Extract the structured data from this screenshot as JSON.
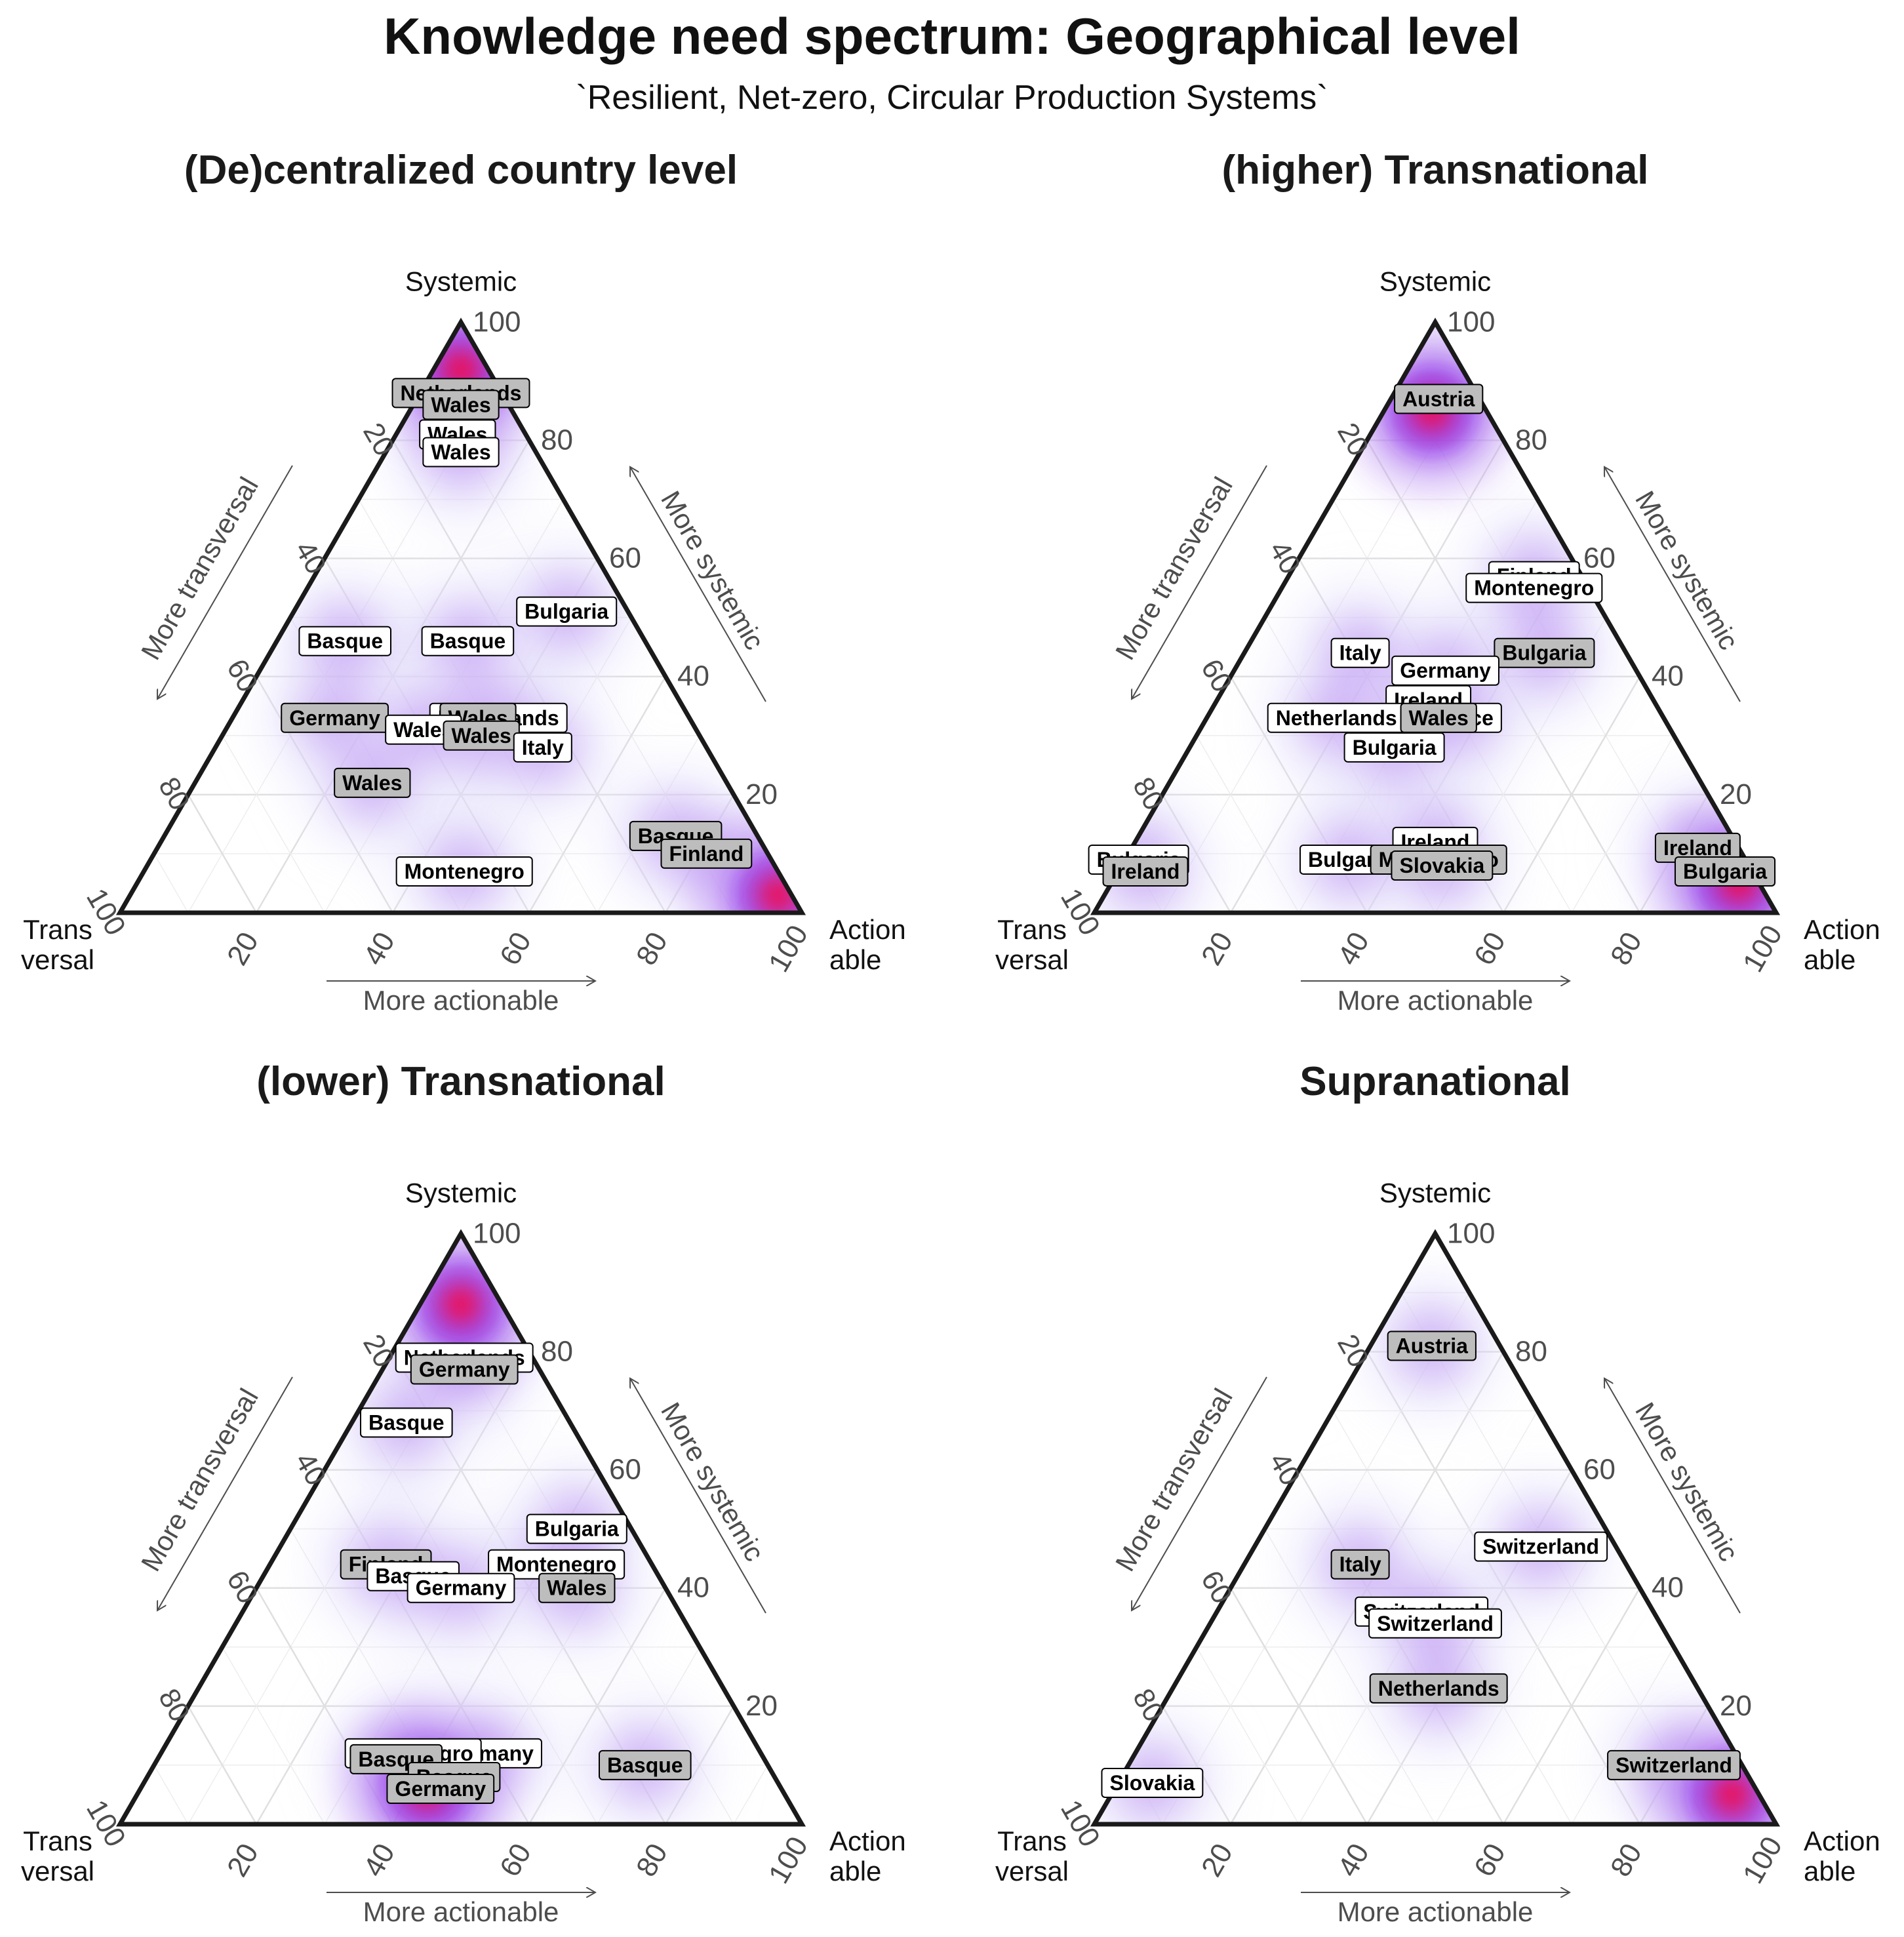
{
  "title": "Knowledge need spectrum: Geographical level",
  "subtitle": "`Resilient, Net-zero, Circular Production Systems`",
  "axes": {
    "top_vertex": "Systemic",
    "left_vertex": [
      "Trans",
      "versal"
    ],
    "right_vertex": [
      "Action",
      "able"
    ],
    "left_arrow": "More transversal",
    "right_arrow": "More systemic",
    "bottom_arrow": "More actionable",
    "ticks": [
      "20",
      "40",
      "60",
      "80",
      "100"
    ]
  },
  "colors": {
    "density_light": "#e3e0fb",
    "density_mid": "#b27cf0",
    "density_high": "#8a1fe6",
    "density_peak": "#ff0033",
    "label_white_fill": "#ffffff",
    "label_grey_fill": "#bdbdbd",
    "frame": "#1a1a1a",
    "grid": "#e6e6e6"
  },
  "chart_data": [
    {
      "type": "ternary-scatter-density",
      "title": "(De)centralized country level",
      "coordinates": [
        "Systemic",
        "Transversal",
        "Actionable"
      ],
      "points": [
        {
          "label": "Netherlands",
          "systemic": 88,
          "transversal": 6,
          "actionable": 6,
          "fill": "grey"
        },
        {
          "label": "Wales",
          "systemic": 86,
          "transversal": 7,
          "actionable": 7,
          "fill": "grey"
        },
        {
          "label": "Wales",
          "systemic": 81,
          "transversal": 10,
          "actionable": 9,
          "fill": "white"
        },
        {
          "label": "Wales",
          "systemic": 78,
          "transversal": 11,
          "actionable": 11,
          "fill": "white"
        },
        {
          "label": "Bulgaria",
          "systemic": 51,
          "transversal": 9,
          "actionable": 40,
          "fill": "white"
        },
        {
          "label": "Basque",
          "systemic": 46,
          "transversal": 44,
          "actionable": 10,
          "fill": "white"
        },
        {
          "label": "Basque",
          "systemic": 46,
          "transversal": 26,
          "actionable": 28,
          "fill": "white"
        },
        {
          "label": "Germany",
          "systemic": 33,
          "transversal": 52,
          "actionable": 15,
          "fill": "grey"
        },
        {
          "label": "Netherlands",
          "systemic": 33,
          "transversal": 28,
          "actionable": 39,
          "fill": "white"
        },
        {
          "label": "Wales",
          "systemic": 33,
          "transversal": 31,
          "actionable": 36,
          "fill": "grey"
        },
        {
          "label": "Wales",
          "systemic": 31,
          "transversal": 40,
          "actionable": 29,
          "fill": "white"
        },
        {
          "label": "Wales",
          "systemic": 30,
          "transversal": 32,
          "actionable": 38,
          "fill": "grey"
        },
        {
          "label": "Italy",
          "systemic": 28,
          "transversal": 24,
          "actionable": 48,
          "fill": "white"
        },
        {
          "label": "Wales",
          "systemic": 22,
          "transversal": 52,
          "actionable": 26,
          "fill": "grey"
        },
        {
          "label": "Basque",
          "systemic": 13,
          "transversal": 12,
          "actionable": 75,
          "fill": "grey"
        },
        {
          "label": "Finland",
          "systemic": 10,
          "transversal": 9,
          "actionable": 81,
          "fill": "grey"
        },
        {
          "label": "Montenegro",
          "systemic": 7,
          "transversal": 46,
          "actionable": 47,
          "fill": "white"
        }
      ],
      "density_peaks": [
        {
          "systemic": 92,
          "transversal": 4,
          "actionable": 4
        },
        {
          "systemic": 3,
          "transversal": 2,
          "actionable": 95
        }
      ]
    },
    {
      "type": "ternary-scatter-density",
      "title": "(higher) Transnational",
      "coordinates": [
        "Systemic",
        "Transversal",
        "Actionable"
      ],
      "points": [
        {
          "label": "Austria",
          "systemic": 87,
          "transversal": 6,
          "actionable": 7,
          "fill": "grey"
        },
        {
          "label": "Finland",
          "systemic": 57,
          "transversal": 7,
          "actionable": 36,
          "fill": "white"
        },
        {
          "label": "Montenegro",
          "systemic": 55,
          "transversal": 8,
          "actionable": 37,
          "fill": "white"
        },
        {
          "label": "Bulgaria",
          "systemic": 44,
          "transversal": 12,
          "actionable": 44,
          "fill": "grey"
        },
        {
          "label": "Italy",
          "systemic": 44,
          "transversal": 39,
          "actionable": 17,
          "fill": "white"
        },
        {
          "label": "Germany",
          "systemic": 41,
          "transversal": 28,
          "actionable": 31,
          "fill": "white"
        },
        {
          "label": "Ireland",
          "systemic": 36,
          "transversal": 33,
          "actionable": 31,
          "fill": "white"
        },
        {
          "label": "Netherlands",
          "systemic": 33,
          "transversal": 48,
          "actionable": 19,
          "fill": "white"
        },
        {
          "label": "France",
          "systemic": 33,
          "transversal": 30,
          "actionable": 37,
          "fill": "white"
        },
        {
          "label": "Wales",
          "systemic": 33,
          "transversal": 33,
          "actionable": 34,
          "fill": "grey"
        },
        {
          "label": "Bulgaria",
          "systemic": 28,
          "transversal": 42,
          "actionable": 30,
          "fill": "white"
        },
        {
          "label": "Ireland",
          "systemic": 12,
          "transversal": 44,
          "actionable": 44,
          "fill": "white"
        },
        {
          "label": "Ireland",
          "systemic": 11,
          "transversal": 6,
          "actionable": 83,
          "fill": "grey"
        },
        {
          "label": "Bulgaria",
          "systemic": 9,
          "transversal": 58,
          "actionable": 33,
          "fill": "white"
        },
        {
          "label": "Bulgaria",
          "systemic": 9,
          "transversal": 89,
          "actionable": 2,
          "fill": "white"
        },
        {
          "label": "Montenegro",
          "systemic": 9,
          "transversal": 45,
          "actionable": 46,
          "fill": "grey"
        },
        {
          "label": "Slovakia",
          "systemic": 8,
          "transversal": 45,
          "actionable": 47,
          "fill": "grey"
        },
        {
          "label": "Ireland",
          "systemic": 7,
          "transversal": 89,
          "actionable": 4,
          "fill": "grey"
        },
        {
          "label": "Bulgaria",
          "systemic": 7,
          "transversal": 4,
          "actionable": 89,
          "fill": "grey"
        }
      ],
      "density_peaks": [
        {
          "systemic": 85,
          "transversal": 8,
          "actionable": 7
        },
        {
          "systemic": 5,
          "transversal": 3,
          "actionable": 92
        }
      ]
    },
    {
      "type": "ternary-scatter-density",
      "title": "(lower) Transnational",
      "coordinates": [
        "Systemic",
        "Transversal",
        "Actionable"
      ],
      "points": [
        {
          "label": "Netherlands",
          "systemic": 79,
          "transversal": 10,
          "actionable": 11,
          "fill": "white"
        },
        {
          "label": "Germany",
          "systemic": 77,
          "transversal": 11,
          "actionable": 12,
          "fill": "grey"
        },
        {
          "label": "Basque",
          "systemic": 68,
          "transversal": 24,
          "actionable": 8,
          "fill": "white"
        },
        {
          "label": "Bulgaria",
          "systemic": 50,
          "transversal": 8,
          "actionable": 42,
          "fill": "white"
        },
        {
          "label": "Finland",
          "systemic": 44,
          "transversal": 39,
          "actionable": 17,
          "fill": "grey"
        },
        {
          "label": "Montenegro",
          "systemic": 44,
          "transversal": 14,
          "actionable": 42,
          "fill": "white"
        },
        {
          "label": "Basque",
          "systemic": 42,
          "transversal": 36,
          "actionable": 22,
          "fill": "white"
        },
        {
          "label": "Germany",
          "systemic": 40,
          "transversal": 30,
          "actionable": 30,
          "fill": "white"
        },
        {
          "label": "Wales",
          "systemic": 40,
          "transversal": 13,
          "actionable": 47,
          "fill": "grey"
        },
        {
          "label": "Germany",
          "systemic": 12,
          "transversal": 40,
          "actionable": 48,
          "fill": "white"
        },
        {
          "label": "Montenegro",
          "systemic": 12,
          "transversal": 51,
          "actionable": 37,
          "fill": "white"
        },
        {
          "label": "Basque",
          "systemic": 11,
          "transversal": 54,
          "actionable": 35,
          "fill": "grey"
        },
        {
          "label": "Basque",
          "systemic": 10,
          "transversal": 18,
          "actionable": 72,
          "fill": "grey"
        },
        {
          "label": "Basque",
          "systemic": 8,
          "transversal": 47,
          "actionable": 45,
          "fill": "grey"
        },
        {
          "label": "Germany",
          "systemic": 6,
          "transversal": 50,
          "actionable": 44,
          "fill": "grey"
        }
      ],
      "density_peaks": [
        {
          "systemic": 88,
          "transversal": 6,
          "actionable": 6
        },
        {
          "systemic": 6,
          "transversal": 52,
          "actionable": 42
        }
      ]
    },
    {
      "type": "ternary-scatter-density",
      "title": "Supranational",
      "coordinates": [
        "Systemic",
        "Transversal",
        "Actionable"
      ],
      "points": [
        {
          "label": "Austria",
          "systemic": 81,
          "transversal": 10,
          "actionable": 9,
          "fill": "grey"
        },
        {
          "label": "Switzerland",
          "systemic": 47,
          "transversal": 11,
          "actionable": 42,
          "fill": "white"
        },
        {
          "label": "Italy",
          "systemic": 44,
          "transversal": 39,
          "actionable": 17,
          "fill": "grey"
        },
        {
          "label": "Switzerland",
          "systemic": 36,
          "transversal": 34,
          "actionable": 30,
          "fill": "white"
        },
        {
          "label": "Switzerland",
          "systemic": 34,
          "transversal": 33,
          "actionable": 33,
          "fill": "white"
        },
        {
          "label": "Netherlands",
          "systemic": 23,
          "transversal": 38,
          "actionable": 39,
          "fill": "grey"
        },
        {
          "label": "Switzerland",
          "systemic": 10,
          "transversal": 10,
          "actionable": 80,
          "fill": "grey"
        },
        {
          "label": "Slovakia",
          "systemic": 7,
          "transversal": 88,
          "actionable": 5,
          "fill": "white"
        }
      ],
      "density_peaks": [
        {
          "systemic": 5,
          "transversal": 4,
          "actionable": 91
        }
      ]
    }
  ]
}
